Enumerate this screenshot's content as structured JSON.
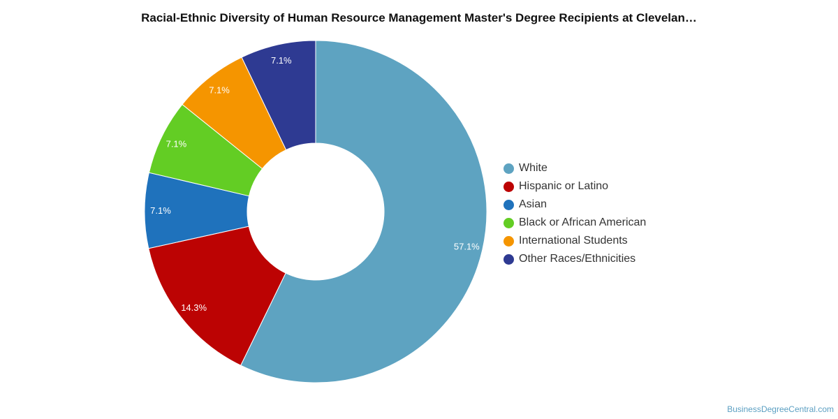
{
  "chart_data": {
    "type": "pie",
    "variant": "donut",
    "title": "Racial-Ethnic Diversity of Human Resource Management Master's Degree Recipients at Clevelan…",
    "categories": [
      "White",
      "Hispanic or Latino",
      "Asian",
      "Black or African American",
      "International Students",
      "Other Races/Ethnicities"
    ],
    "values": [
      57.1,
      14.3,
      7.1,
      7.1,
      7.1,
      7.1
    ],
    "data_labels": [
      "57.1%",
      "14.3%",
      "7.1%",
      "7.1%",
      "7.1%",
      "7.1%"
    ],
    "colors": [
      "#5ea3c1",
      "#bc0303",
      "#1f72bc",
      "#63cd24",
      "#f59500",
      "#2e3a92"
    ],
    "legend_position": "right"
  },
  "credit": "BusinessDegreeCentral.com"
}
